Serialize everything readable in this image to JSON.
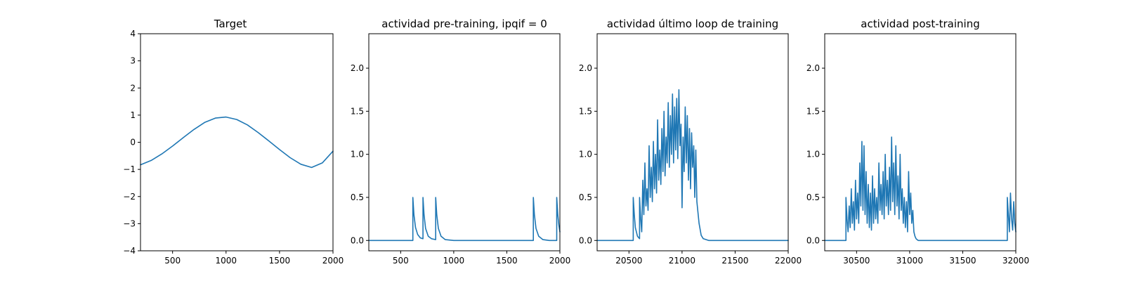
{
  "figure": {
    "background": "#ffffff",
    "line_color": "#1f77b4"
  },
  "chart_data": [
    {
      "type": "line",
      "title": "Target",
      "xlabel": "",
      "ylabel": "",
      "xlim": [
        200,
        2000
      ],
      "ylim": [
        -4,
        4
      ],
      "xticks": [
        500,
        1000,
        1500,
        2000
      ],
      "yticks": [
        -4,
        -3,
        -2,
        -1,
        0,
        1,
        2,
        3,
        4
      ],
      "xtick_labels": [
        "500",
        "1000",
        "1500",
        "2000"
      ],
      "ytick_labels": [
        "−4",
        "−3",
        "−2",
        "−1",
        "0",
        "1",
        "2",
        "3",
        "4"
      ],
      "grid": false,
      "series": [
        {
          "x": [
            200,
            300,
            400,
            500,
            600,
            700,
            800,
            900,
            1000,
            1100,
            1200,
            1300,
            1400,
            1500,
            1600,
            1700,
            1800,
            1900,
            2000
          ],
          "y": [
            -0.83,
            -0.67,
            -0.43,
            -0.14,
            0.17,
            0.47,
            0.73,
            0.89,
            0.93,
            0.84,
            0.64,
            0.36,
            0.05,
            -0.27,
            -0.57,
            -0.81,
            -0.93,
            -0.76,
            -0.33
          ]
        }
      ]
    },
    {
      "type": "line",
      "title": "actividad pre-training, ipqif = 0",
      "xlabel": "",
      "ylabel": "",
      "xlim": [
        200,
        2000
      ],
      "ylim": [
        -0.12,
        2.4
      ],
      "xticks": [
        500,
        1000,
        1500,
        2000
      ],
      "yticks": [
        0,
        0.5,
        1,
        1.5,
        2
      ],
      "xtick_labels": [
        "500",
        "1000",
        "1500",
        "2000"
      ],
      "ytick_labels": [
        "0.0",
        "0.5",
        "1.0",
        "1.5",
        "2.0"
      ],
      "grid": false,
      "series": [
        {
          "x": [
            200,
            615,
            615,
            625,
            640,
            660,
            685,
            710,
            710,
            720,
            735,
            760,
            790,
            830,
            830,
            840,
            855,
            880,
            920,
            1000,
            1750,
            1750,
            1760,
            1775,
            1800,
            1840,
            1900,
            1970,
            1970,
            1980,
            1990,
            2000
          ],
          "y": [
            0,
            0,
            0.5,
            0.3,
            0.15,
            0.07,
            0.03,
            0.02,
            0.5,
            0.3,
            0.14,
            0.05,
            0.02,
            0.01,
            0.5,
            0.3,
            0.14,
            0.05,
            0.01,
            0,
            0,
            0.5,
            0.3,
            0.14,
            0.05,
            0.01,
            0,
            0,
            0.5,
            0.3,
            0.18,
            0.1
          ]
        }
      ]
    },
    {
      "type": "line",
      "title": "actividad último loop de training",
      "xlabel": "",
      "ylabel": "",
      "xlim": [
        20200,
        22000
      ],
      "ylim": [
        -0.12,
        2.4
      ],
      "xticks": [
        20500,
        21000,
        21500,
        22000
      ],
      "yticks": [
        0,
        0.5,
        1,
        1.5,
        2
      ],
      "xtick_labels": [
        "20500",
        "21000",
        "21500",
        "22000"
      ],
      "ytick_labels": [
        "0.0",
        "0.5",
        "1.0",
        "1.5",
        "2.0"
      ],
      "grid": false,
      "series": [
        {
          "x": [
            20200,
            20540,
            20540,
            20550,
            20560,
            20580,
            20600,
            20600,
            20610,
            20620,
            20630,
            20640,
            20650,
            20660,
            20670,
            20680,
            20690,
            20700,
            20710,
            20720,
            20730,
            20740,
            20750,
            20760,
            20770,
            20780,
            20790,
            20800,
            20810,
            20820,
            20830,
            20840,
            20850,
            20860,
            20870,
            20880,
            20890,
            20900,
            20910,
            20920,
            20930,
            20940,
            20950,
            20960,
            20970,
            20980,
            20990,
            21000,
            21010,
            21020,
            21030,
            21040,
            21050,
            21060,
            21070,
            21080,
            21090,
            21100,
            21110,
            21120,
            21130,
            21140,
            21160,
            21180,
            21200,
            21250,
            21300,
            21400,
            22000
          ],
          "y": [
            0,
            0,
            0.5,
            0.3,
            0.15,
            0.05,
            0.02,
            0.5,
            0.25,
            0.1,
            0.7,
            0.3,
            0.9,
            0.4,
            0.6,
            0.35,
            1.1,
            0.5,
            0.85,
            0.45,
            1.15,
            0.6,
            1.0,
            0.55,
            1.4,
            0.7,
            1.05,
            0.65,
            1.3,
            0.8,
            1.5,
            0.75,
            1.2,
            0.9,
            1.6,
            0.85,
            1.45,
            1.0,
            1.7,
            0.9,
            1.55,
            1.05,
            1.65,
            0.95,
            1.75,
            1.1,
            1.35,
            0.38,
            1.2,
            0.8,
            1.55,
            0.9,
            1.45,
            0.7,
            1.3,
            0.6,
            1.25,
            0.85,
            1.1,
            0.5,
            1.05,
            0.45,
            0.2,
            0.06,
            0.02,
            0,
            0,
            0,
            0
          ]
        }
      ]
    },
    {
      "type": "line",
      "title": "actividad post-training",
      "xlabel": "",
      "ylabel": "",
      "xlim": [
        30200,
        32000
      ],
      "ylim": [
        -0.12,
        2.4
      ],
      "xticks": [
        30500,
        31000,
        31500,
        32000
      ],
      "yticks": [
        0,
        0.5,
        1,
        1.5,
        2
      ],
      "xtick_labels": [
        "30500",
        "31000",
        "31500",
        "32000"
      ],
      "ytick_labels": [
        "0.0",
        "0.5",
        "1.0",
        "1.5",
        "2.0"
      ],
      "grid": false,
      "series": [
        {
          "x": [
            30200,
            30400,
            30400,
            30410,
            30420,
            30430,
            30440,
            30450,
            30460,
            30470,
            30480,
            30490,
            30500,
            30510,
            30520,
            30530,
            30540,
            30550,
            30560,
            30570,
            30580,
            30590,
            30600,
            30610,
            30620,
            30630,
            30640,
            30650,
            30660,
            30670,
            30680,
            30690,
            30700,
            30710,
            30720,
            30730,
            30740,
            30750,
            30760,
            30770,
            30780,
            30790,
            30800,
            30810,
            30820,
            30830,
            30840,
            30850,
            30860,
            30870,
            30880,
            30890,
            30900,
            30910,
            30920,
            30930,
            30940,
            30950,
            30960,
            30970,
            30980,
            30990,
            31000,
            31010,
            31020,
            31030,
            31040,
            31050,
            31060,
            31070,
            31080,
            31090,
            31100,
            31150,
            31200,
            31300,
            31920,
            31920,
            31930,
            31940,
            31950,
            31960,
            31970,
            31980,
            31990,
            32000
          ],
          "y": [
            0,
            0,
            0.5,
            0.25,
            0.1,
            0.4,
            0.15,
            0.6,
            0.2,
            0.45,
            0.12,
            0.7,
            0.25,
            0.55,
            0.2,
            0.9,
            0.4,
            1.15,
            0.35,
            1.1,
            0.3,
            0.8,
            0.2,
            0.65,
            0.15,
            0.55,
            0.12,
            0.75,
            0.2,
            0.6,
            0.25,
            0.5,
            0.2,
            0.9,
            0.35,
            0.65,
            0.3,
            0.8,
            0.25,
            1.0,
            0.4,
            0.7,
            0.3,
            0.85,
            0.35,
            1.2,
            0.45,
            0.9,
            0.3,
            1.1,
            0.4,
            0.75,
            0.25,
            1.0,
            0.35,
            0.6,
            0.2,
            0.5,
            0.15,
            0.45,
            0.1,
            0.8,
            0.3,
            0.55,
            0.2,
            0.35,
            0.1,
            0.05,
            0.02,
            0.01,
            0,
            0,
            0,
            0,
            0,
            0,
            0,
            0.5,
            0.3,
            0.1,
            0.55,
            0.25,
            0.12,
            0.45,
            0.2,
            0.1
          ]
        }
      ]
    }
  ]
}
